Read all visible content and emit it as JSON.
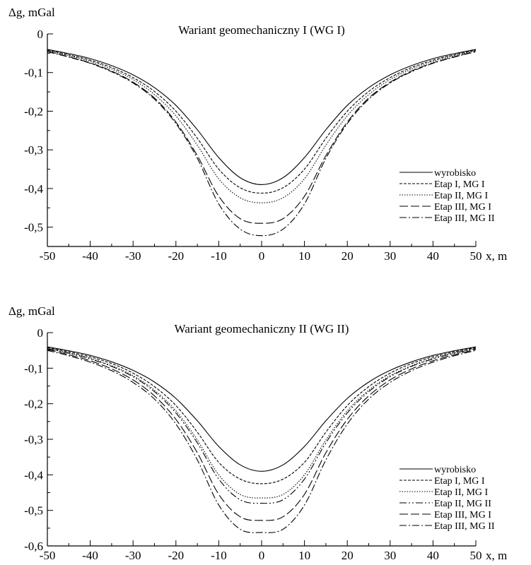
{
  "chart_data": [
    {
      "type": "line",
      "title": "Wariant geomechaniczny I (WG I)",
      "ylabel": "Δg, mGal",
      "xlabel": "x, m",
      "xlim": [
        -50,
        50
      ],
      "ylim": [
        -0.55,
        0
      ],
      "xticks": [
        -50,
        -40,
        -30,
        -20,
        -10,
        0,
        10,
        20,
        30,
        40,
        50
      ],
      "xtick_labels": [
        "-50",
        "-40",
        "-30",
        "-20",
        "-10",
        "0",
        "10",
        "20",
        "30",
        "40",
        "50"
      ],
      "yticks": [
        0,
        -0.1,
        -0.2,
        -0.3,
        -0.4,
        -0.5
      ],
      "ytick_labels": [
        "0",
        "-0,1",
        "-0,2",
        "-0,3",
        "-0,4",
        "-0,5"
      ],
      "grid": false,
      "legend_position": "lower-right",
      "x": [
        -50,
        -45,
        -40,
        -35,
        -30,
        -25,
        -20,
        -15,
        -10,
        -5,
        0,
        5,
        10,
        15,
        20,
        25,
        30,
        35,
        40,
        45,
        50
      ],
      "series": [
        {
          "name": "wyrobisko",
          "dash": "solid",
          "values": [
            -0.04,
            -0.051,
            -0.064,
            -0.082,
            -0.106,
            -0.139,
            -0.185,
            -0.248,
            -0.32,
            -0.372,
            -0.39,
            -0.372,
            -0.32,
            -0.248,
            -0.185,
            -0.139,
            -0.106,
            -0.082,
            -0.064,
            -0.051,
            -0.04
          ]
        },
        {
          "name": "Etap I, MG I",
          "dash": "short-dash",
          "values": [
            -0.042,
            -0.054,
            -0.068,
            -0.087,
            -0.113,
            -0.149,
            -0.2,
            -0.27,
            -0.35,
            -0.398,
            -0.412,
            -0.398,
            -0.35,
            -0.27,
            -0.2,
            -0.149,
            -0.113,
            -0.087,
            -0.068,
            -0.054,
            -0.042
          ]
        },
        {
          "name": "Etap II, MG I",
          "dash": "dotted",
          "values": [
            -0.043,
            -0.056,
            -0.071,
            -0.091,
            -0.118,
            -0.157,
            -0.212,
            -0.288,
            -0.375,
            -0.424,
            -0.437,
            -0.424,
            -0.375,
            -0.288,
            -0.212,
            -0.157,
            -0.118,
            -0.091,
            -0.071,
            -0.056,
            -0.043
          ]
        },
        {
          "name": "Etap III, MG I",
          "dash": "long-dash",
          "values": [
            -0.045,
            -0.059,
            -0.075,
            -0.096,
            -0.125,
            -0.166,
            -0.228,
            -0.315,
            -0.42,
            -0.478,
            -0.49,
            -0.478,
            -0.42,
            -0.315,
            -0.228,
            -0.166,
            -0.125,
            -0.096,
            -0.075,
            -0.059,
            -0.045
          ]
        },
        {
          "name": "Etap III, MG II",
          "dash": "dash-dot",
          "values": [
            -0.046,
            -0.06,
            -0.076,
            -0.098,
            -0.127,
            -0.169,
            -0.232,
            -0.322,
            -0.44,
            -0.505,
            -0.522,
            -0.505,
            -0.44,
            -0.322,
            -0.232,
            -0.169,
            -0.127,
            -0.098,
            -0.076,
            -0.06,
            -0.046
          ]
        }
      ]
    },
    {
      "type": "line",
      "title": "Wariant geomechaniczny II (WG II)",
      "ylabel": "Δg, mGal",
      "xlabel": "x, m",
      "xlim": [
        -50,
        50
      ],
      "ylim": [
        -0.6,
        0
      ],
      "xticks": [
        -50,
        -40,
        -30,
        -20,
        -10,
        0,
        10,
        20,
        30,
        40,
        50
      ],
      "xtick_labels": [
        "-50",
        "-40",
        "-30",
        "-20",
        "-10",
        "0",
        "10",
        "20",
        "30",
        "40",
        "50"
      ],
      "yticks": [
        0,
        -0.1,
        -0.2,
        -0.3,
        -0.4,
        -0.5,
        -0.6
      ],
      "ytick_labels": [
        "0",
        "-0,1",
        "-0,2",
        "-0,3",
        "-0,4",
        "-0,5",
        "-0,6"
      ],
      "grid": false,
      "legend_position": "lower-right",
      "x": [
        -50,
        -45,
        -40,
        -35,
        -30,
        -25,
        -20,
        -15,
        -10,
        -5,
        0,
        5,
        10,
        15,
        20,
        25,
        30,
        35,
        40,
        45,
        50
      ],
      "series": [
        {
          "name": "wyrobisko",
          "dash": "solid",
          "values": [
            -0.04,
            -0.051,
            -0.064,
            -0.082,
            -0.106,
            -0.139,
            -0.185,
            -0.248,
            -0.32,
            -0.372,
            -0.39,
            -0.372,
            -0.32,
            -0.248,
            -0.185,
            -0.139,
            -0.106,
            -0.082,
            -0.064,
            -0.051,
            -0.04
          ]
        },
        {
          "name": "Etap I, MG I",
          "dash": "short-dash",
          "values": [
            -0.042,
            -0.054,
            -0.068,
            -0.087,
            -0.114,
            -0.152,
            -0.205,
            -0.28,
            -0.365,
            -0.412,
            -0.425,
            -0.412,
            -0.365,
            -0.28,
            -0.205,
            -0.152,
            -0.114,
            -0.087,
            -0.068,
            -0.054,
            -0.042
          ]
        },
        {
          "name": "Etap II, MG I",
          "dash": "dotted",
          "values": [
            -0.044,
            -0.057,
            -0.072,
            -0.093,
            -0.121,
            -0.162,
            -0.22,
            -0.302,
            -0.4,
            -0.455,
            -0.465,
            -0.455,
            -0.4,
            -0.302,
            -0.22,
            -0.162,
            -0.121,
            -0.093,
            -0.072,
            -0.057,
            -0.044
          ]
        },
        {
          "name": "Etap II, MG II",
          "dash": "dash-dot-dot",
          "values": [
            -0.045,
            -0.058,
            -0.074,
            -0.095,
            -0.124,
            -0.166,
            -0.226,
            -0.31,
            -0.412,
            -0.47,
            -0.48,
            -0.47,
            -0.412,
            -0.31,
            -0.226,
            -0.166,
            -0.124,
            -0.095,
            -0.074,
            -0.058,
            -0.045
          ]
        },
        {
          "name": "Etap III, MG I",
          "dash": "long-dash",
          "values": [
            -0.047,
            -0.062,
            -0.079,
            -0.102,
            -0.133,
            -0.178,
            -0.244,
            -0.338,
            -0.455,
            -0.518,
            -0.528,
            -0.518,
            -0.455,
            -0.338,
            -0.244,
            -0.178,
            -0.133,
            -0.102,
            -0.079,
            -0.062,
            -0.047
          ]
        },
        {
          "name": "Etap III, MG II",
          "dash": "dash-dot",
          "values": [
            -0.05,
            -0.065,
            -0.083,
            -0.107,
            -0.14,
            -0.187,
            -0.257,
            -0.358,
            -0.485,
            -0.553,
            -0.562,
            -0.553,
            -0.485,
            -0.358,
            -0.257,
            -0.187,
            -0.14,
            -0.107,
            -0.083,
            -0.065,
            -0.05
          ]
        }
      ]
    }
  ]
}
